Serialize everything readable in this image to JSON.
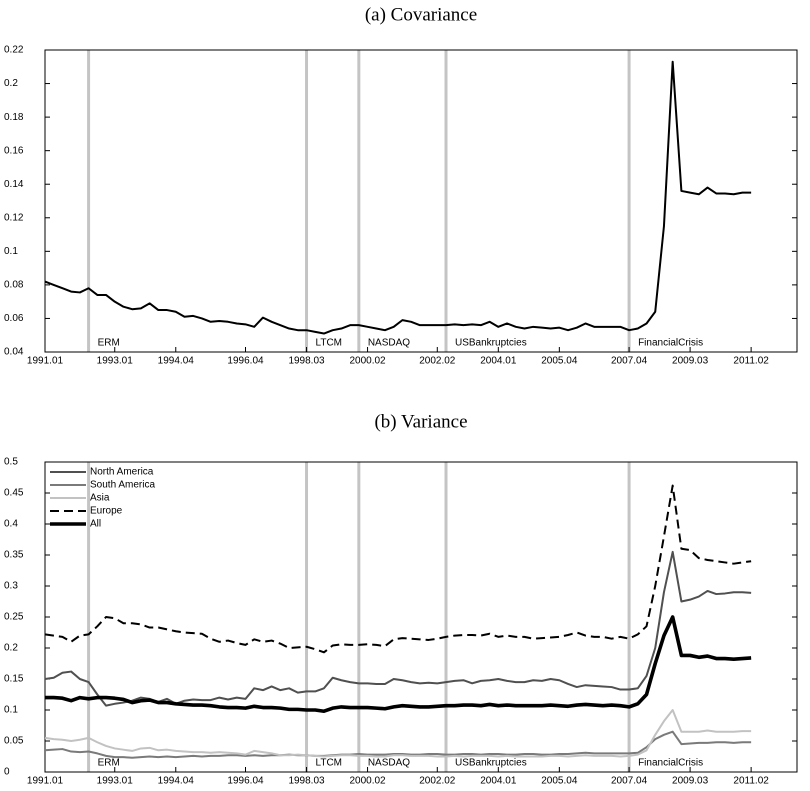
{
  "chart_data": [
    {
      "type": "line",
      "title": "(a) Covariance",
      "x": [
        "1991.01",
        "1991.02",
        "1991.03",
        "1991.04",
        "1992.01",
        "1992.02",
        "1992.03",
        "1992.04",
        "1993.01",
        "1993.02",
        "1993.03",
        "1993.04",
        "1994.01",
        "1994.02",
        "1994.03",
        "1994.04",
        "1995.01",
        "1995.02",
        "1995.03",
        "1995.04",
        "1996.01",
        "1996.02",
        "1996.03",
        "1996.04",
        "1997.01",
        "1997.02",
        "1997.03",
        "1997.04",
        "1998.01",
        "1998.02",
        "1998.03",
        "1998.04",
        "1999.01",
        "1999.02",
        "1999.03",
        "1999.04",
        "2000.01",
        "2000.02",
        "2000.03",
        "2000.04",
        "2001.01",
        "2001.02",
        "2001.03",
        "2001.04",
        "2002.01",
        "2002.02",
        "2002.03",
        "2002.04",
        "2003.01",
        "2003.02",
        "2003.03",
        "2003.04",
        "2004.01",
        "2004.02",
        "2004.03",
        "2004.04",
        "2005.01",
        "2005.02",
        "2005.03",
        "2005.04",
        "2006.01",
        "2006.02",
        "2006.03",
        "2006.04",
        "2007.01",
        "2007.02",
        "2007.03",
        "2007.04",
        "2008.01",
        "2008.02",
        "2008.03",
        "2008.04",
        "2009.01",
        "2009.02",
        "2009.03",
        "2009.04",
        "2010.01",
        "2010.02",
        "2010.03",
        "2010.04",
        "2011.01",
        "2011.02"
      ],
      "series": [
        {
          "color": "#000000",
          "linestyle": "solid",
          "weight": "medium",
          "values": [
            0.082,
            0.08,
            0.078,
            0.076,
            0.0755,
            0.078,
            0.074,
            0.074,
            0.07,
            0.067,
            0.0655,
            0.066,
            0.069,
            0.065,
            0.065,
            0.064,
            0.061,
            0.0615,
            0.06,
            0.058,
            0.0585,
            0.058,
            0.057,
            0.0565,
            0.055,
            0.0605,
            0.058,
            0.056,
            0.054,
            0.053,
            0.053,
            0.052,
            0.051,
            0.053,
            0.054,
            0.056,
            0.056,
            0.055,
            0.054,
            0.053,
            0.055,
            0.059,
            0.058,
            0.056,
            0.056,
            0.056,
            0.056,
            0.0565,
            0.056,
            0.0565,
            0.056,
            0.058,
            0.055,
            0.057,
            0.055,
            0.054,
            0.055,
            0.0545,
            0.054,
            0.0545,
            0.053,
            0.0545,
            0.057,
            0.055,
            0.055,
            0.055,
            0.055,
            0.053,
            0.054,
            0.057,
            0.064,
            0.115,
            0.213,
            0.136,
            0.135,
            0.134,
            0.138,
            0.1345,
            0.1345,
            0.134,
            0.135,
            0.135
          ]
        }
      ],
      "ylim": [
        0.04,
        0.22
      ],
      "yticks": [
        0.04,
        0.06,
        0.08,
        0.1,
        0.12,
        0.14,
        0.16,
        0.18,
        0.2,
        0.22
      ],
      "xticks": [
        "1991.01",
        "1993.01",
        "1994.04",
        "1996.04",
        "1998.03",
        "2000.02",
        "2002.02",
        "2004.01",
        "2005.04",
        "2007.04",
        "2009.03",
        "2011.02"
      ],
      "events": [
        {
          "label": "ERM",
          "x": "1992.02"
        },
        {
          "label": "LTCM",
          "x": "1998.03"
        },
        {
          "label": "NASDAQ",
          "x": "2000.01"
        },
        {
          "label": "USBankruptcies",
          "x": "2002.03"
        },
        {
          "label": "FinancialCrisis",
          "x": "2007.04"
        }
      ],
      "event_color": "#c4c4c4"
    },
    {
      "type": "line",
      "title": "(b) Variance",
      "x": [
        "1991.01",
        "1991.02",
        "1991.03",
        "1991.04",
        "1992.01",
        "1992.02",
        "1992.03",
        "1992.04",
        "1993.01",
        "1993.02",
        "1993.03",
        "1993.04",
        "1994.01",
        "1994.02",
        "1994.03",
        "1994.04",
        "1995.01",
        "1995.02",
        "1995.03",
        "1995.04",
        "1996.01",
        "1996.02",
        "1996.03",
        "1996.04",
        "1997.01",
        "1997.02",
        "1997.03",
        "1997.04",
        "1998.01",
        "1998.02",
        "1998.03",
        "1998.04",
        "1999.01",
        "1999.02",
        "1999.03",
        "1999.04",
        "2000.01",
        "2000.02",
        "2000.03",
        "2000.04",
        "2001.01",
        "2001.02",
        "2001.03",
        "2001.04",
        "2002.01",
        "2002.02",
        "2002.03",
        "2002.04",
        "2003.01",
        "2003.02",
        "2003.03",
        "2003.04",
        "2004.01",
        "2004.02",
        "2004.03",
        "2004.04",
        "2005.01",
        "2005.02",
        "2005.03",
        "2005.04",
        "2006.01",
        "2006.02",
        "2006.03",
        "2006.04",
        "2007.01",
        "2007.02",
        "2007.03",
        "2007.04",
        "2008.01",
        "2008.02",
        "2008.03",
        "2008.04",
        "2009.01",
        "2009.02",
        "2009.03",
        "2009.04",
        "2010.01",
        "2010.02",
        "2010.03",
        "2010.04",
        "2011.01",
        "2011.02"
      ],
      "series": [
        {
          "name": "North America",
          "color": "#505050",
          "linestyle": "solid",
          "weight": "medium",
          "values": [
            0.15,
            0.152,
            0.16,
            0.162,
            0.15,
            0.145,
            0.125,
            0.107,
            0.11,
            0.112,
            0.115,
            0.12,
            0.118,
            0.113,
            0.118,
            0.11,
            0.115,
            0.117,
            0.116,
            0.116,
            0.12,
            0.117,
            0.12,
            0.118,
            0.135,
            0.132,
            0.138,
            0.132,
            0.135,
            0.128,
            0.13,
            0.13,
            0.135,
            0.152,
            0.148,
            0.145,
            0.143,
            0.143,
            0.142,
            0.142,
            0.15,
            0.148,
            0.145,
            0.143,
            0.144,
            0.143,
            0.145,
            0.147,
            0.148,
            0.143,
            0.147,
            0.148,
            0.15,
            0.147,
            0.145,
            0.145,
            0.148,
            0.147,
            0.15,
            0.148,
            0.142,
            0.137,
            0.14,
            0.139,
            0.138,
            0.137,
            0.133,
            0.133,
            0.135,
            0.155,
            0.2,
            0.29,
            0.355,
            0.275,
            0.278,
            0.283,
            0.292,
            0.287,
            0.288,
            0.29,
            0.29,
            0.289
          ]
        },
        {
          "name": "South America",
          "color": "#7a7a7a",
          "linestyle": "solid",
          "weight": "medium",
          "values": [
            0.035,
            0.036,
            0.037,
            0.033,
            0.032,
            0.033,
            0.03,
            0.026,
            0.024,
            0.024,
            0.023,
            0.024,
            0.025,
            0.024,
            0.025,
            0.024,
            0.025,
            0.026,
            0.025,
            0.026,
            0.026,
            0.027,
            0.027,
            0.026,
            0.027,
            0.026,
            0.027,
            0.027,
            0.028,
            0.027,
            0.027,
            0.026,
            0.026,
            0.027,
            0.028,
            0.028,
            0.029,
            0.028,
            0.028,
            0.028,
            0.029,
            0.029,
            0.028,
            0.028,
            0.029,
            0.029,
            0.028,
            0.028,
            0.029,
            0.029,
            0.028,
            0.029,
            0.029,
            0.028,
            0.028,
            0.029,
            0.029,
            0.028,
            0.028,
            0.029,
            0.029,
            0.03,
            0.031,
            0.03,
            0.03,
            0.03,
            0.03,
            0.03,
            0.031,
            0.04,
            0.053,
            0.06,
            0.065,
            0.045,
            0.046,
            0.047,
            0.047,
            0.048,
            0.048,
            0.047,
            0.048,
            0.048
          ]
        },
        {
          "name": "Asia",
          "color": "#c2c2c2",
          "linestyle": "solid",
          "weight": "medium",
          "values": [
            0.055,
            0.053,
            0.052,
            0.05,
            0.052,
            0.055,
            0.048,
            0.042,
            0.038,
            0.036,
            0.034,
            0.038,
            0.039,
            0.035,
            0.036,
            0.034,
            0.033,
            0.032,
            0.032,
            0.031,
            0.032,
            0.031,
            0.03,
            0.028,
            0.034,
            0.032,
            0.03,
            0.027,
            0.027,
            0.028,
            0.027,
            0.026,
            0.025,
            0.026,
            0.027,
            0.027,
            0.026,
            0.026,
            0.025,
            0.025,
            0.027,
            0.027,
            0.026,
            0.026,
            0.026,
            0.025,
            0.025,
            0.026,
            0.025,
            0.026,
            0.026,
            0.026,
            0.025,
            0.026,
            0.025,
            0.025,
            0.025,
            0.025,
            0.026,
            0.026,
            0.025,
            0.026,
            0.027,
            0.026,
            0.026,
            0.026,
            0.025,
            0.026,
            0.028,
            0.035,
            0.06,
            0.082,
            0.1,
            0.065,
            0.065,
            0.065,
            0.067,
            0.065,
            0.065,
            0.065,
            0.066,
            0.066
          ]
        },
        {
          "name": "Europe",
          "color": "#000000",
          "linestyle": "dashed",
          "weight": "medium",
          "values": [
            0.222,
            0.22,
            0.218,
            0.21,
            0.22,
            0.222,
            0.235,
            0.25,
            0.248,
            0.24,
            0.24,
            0.238,
            0.233,
            0.233,
            0.23,
            0.227,
            0.225,
            0.224,
            0.223,
            0.215,
            0.21,
            0.212,
            0.208,
            0.205,
            0.214,
            0.21,
            0.212,
            0.207,
            0.2,
            0.201,
            0.202,
            0.198,
            0.193,
            0.204,
            0.206,
            0.205,
            0.205,
            0.206,
            0.205,
            0.203,
            0.214,
            0.216,
            0.215,
            0.214,
            0.213,
            0.215,
            0.218,
            0.22,
            0.221,
            0.221,
            0.22,
            0.223,
            0.218,
            0.22,
            0.218,
            0.218,
            0.215,
            0.216,
            0.217,
            0.218,
            0.221,
            0.225,
            0.22,
            0.218,
            0.218,
            0.215,
            0.218,
            0.215,
            0.222,
            0.235,
            0.3,
            0.38,
            0.462,
            0.36,
            0.358,
            0.345,
            0.342,
            0.34,
            0.338,
            0.336,
            0.338,
            0.34
          ]
        },
        {
          "name": "All",
          "color": "#000000",
          "linestyle": "solid",
          "weight": "bold",
          "values": [
            0.12,
            0.12,
            0.119,
            0.115,
            0.12,
            0.118,
            0.12,
            0.12,
            0.119,
            0.117,
            0.112,
            0.115,
            0.116,
            0.112,
            0.112,
            0.11,
            0.109,
            0.108,
            0.108,
            0.107,
            0.105,
            0.104,
            0.104,
            0.103,
            0.106,
            0.104,
            0.104,
            0.103,
            0.101,
            0.101,
            0.1,
            0.1,
            0.098,
            0.103,
            0.105,
            0.104,
            0.104,
            0.104,
            0.103,
            0.102,
            0.105,
            0.107,
            0.106,
            0.105,
            0.105,
            0.106,
            0.107,
            0.107,
            0.108,
            0.108,
            0.107,
            0.109,
            0.107,
            0.108,
            0.107,
            0.107,
            0.107,
            0.107,
            0.108,
            0.107,
            0.106,
            0.108,
            0.109,
            0.108,
            0.107,
            0.108,
            0.107,
            0.105,
            0.11,
            0.125,
            0.175,
            0.22,
            0.25,
            0.188,
            0.188,
            0.185,
            0.187,
            0.183,
            0.183,
            0.182,
            0.183,
            0.184
          ]
        }
      ],
      "ylim": [
        0,
        0.5
      ],
      "yticks": [
        0,
        0.05,
        0.1,
        0.15,
        0.2,
        0.25,
        0.3,
        0.35,
        0.4,
        0.45,
        0.5
      ],
      "xticks": [
        "1991.01",
        "1993.01",
        "1994.04",
        "1996.04",
        "1998.03",
        "2000.02",
        "2002.02",
        "2004.01",
        "2005.04",
        "2007.04",
        "2009.03",
        "2011.02"
      ],
      "events": [
        {
          "label": "ERM",
          "x": "1992.02"
        },
        {
          "label": "LTCM",
          "x": "1998.03"
        },
        {
          "label": "NASDAQ",
          "x": "2000.01"
        },
        {
          "label": "USBankruptcies",
          "x": "2002.03"
        },
        {
          "label": "FinancialCrisis",
          "x": "2007.04"
        }
      ],
      "event_color": "#c4c4c4",
      "legend": "upper left"
    }
  ]
}
